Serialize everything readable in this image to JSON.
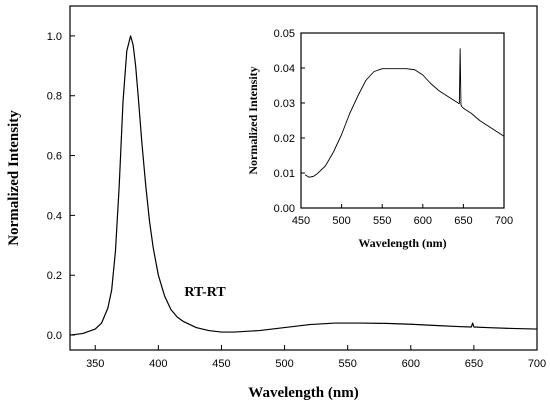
{
  "chart_data": [
    {
      "type": "line",
      "xlabel": "Wavelength (nm)",
      "ylabel": "Normalized Intensity",
      "xlim": [
        330,
        700
      ],
      "ylim": [
        -0.05,
        1.1
      ],
      "xticks": [
        350,
        400,
        450,
        500,
        550,
        600,
        650,
        700
      ],
      "yticks": [
        0.0,
        0.2,
        0.4,
        0.6,
        0.8,
        1.0
      ],
      "annotation": "RT-RT",
      "grid": false,
      "series": [
        {
          "x": [
            330,
            340,
            350,
            355,
            360,
            363,
            366,
            369,
            372,
            375,
            378,
            380,
            382,
            384,
            387,
            390,
            393,
            396,
            400,
            405,
            410,
            415,
            420,
            430,
            440,
            450,
            460,
            480,
            500,
            520,
            540,
            550,
            560,
            580,
            600,
            620,
            640,
            648,
            649,
            650,
            660,
            680,
            700
          ],
          "y": [
            0.0,
            0.005,
            0.02,
            0.04,
            0.09,
            0.15,
            0.28,
            0.5,
            0.78,
            0.95,
            1.0,
            0.97,
            0.9,
            0.8,
            0.64,
            0.5,
            0.38,
            0.29,
            0.2,
            0.13,
            0.085,
            0.06,
            0.045,
            0.025,
            0.015,
            0.01,
            0.01,
            0.015,
            0.025,
            0.035,
            0.04,
            0.04,
            0.04,
            0.039,
            0.036,
            0.032,
            0.028,
            0.027,
            0.04,
            0.027,
            0.025,
            0.022,
            0.02
          ]
        }
      ]
    },
    {
      "type": "line",
      "xlabel": "Wavelength (nm)",
      "ylabel": "Normalized Intensity",
      "xlim": [
        450,
        700
      ],
      "ylim": [
        0.0,
        0.05
      ],
      "xticks": [
        450,
        500,
        550,
        600,
        650,
        700
      ],
      "yticks": [
        0.0,
        0.01,
        0.02,
        0.03,
        0.04,
        0.05
      ],
      "grid": false,
      "series": [
        {
          "x": [
            455,
            460,
            465,
            470,
            480,
            490,
            500,
            510,
            520,
            530,
            540,
            550,
            560,
            570,
            580,
            590,
            600,
            610,
            620,
            630,
            640,
            645,
            646,
            647,
            648,
            650,
            660,
            670,
            680,
            690,
            700
          ],
          "y": [
            0.0095,
            0.0088,
            0.009,
            0.0098,
            0.012,
            0.016,
            0.021,
            0.027,
            0.032,
            0.0365,
            0.039,
            0.0398,
            0.0398,
            0.0398,
            0.0398,
            0.0395,
            0.038,
            0.0355,
            0.0335,
            0.032,
            0.0305,
            0.0298,
            0.0455,
            0.0295,
            0.029,
            0.0285,
            0.027,
            0.025,
            0.0235,
            0.022,
            0.0205
          ]
        }
      ]
    }
  ]
}
